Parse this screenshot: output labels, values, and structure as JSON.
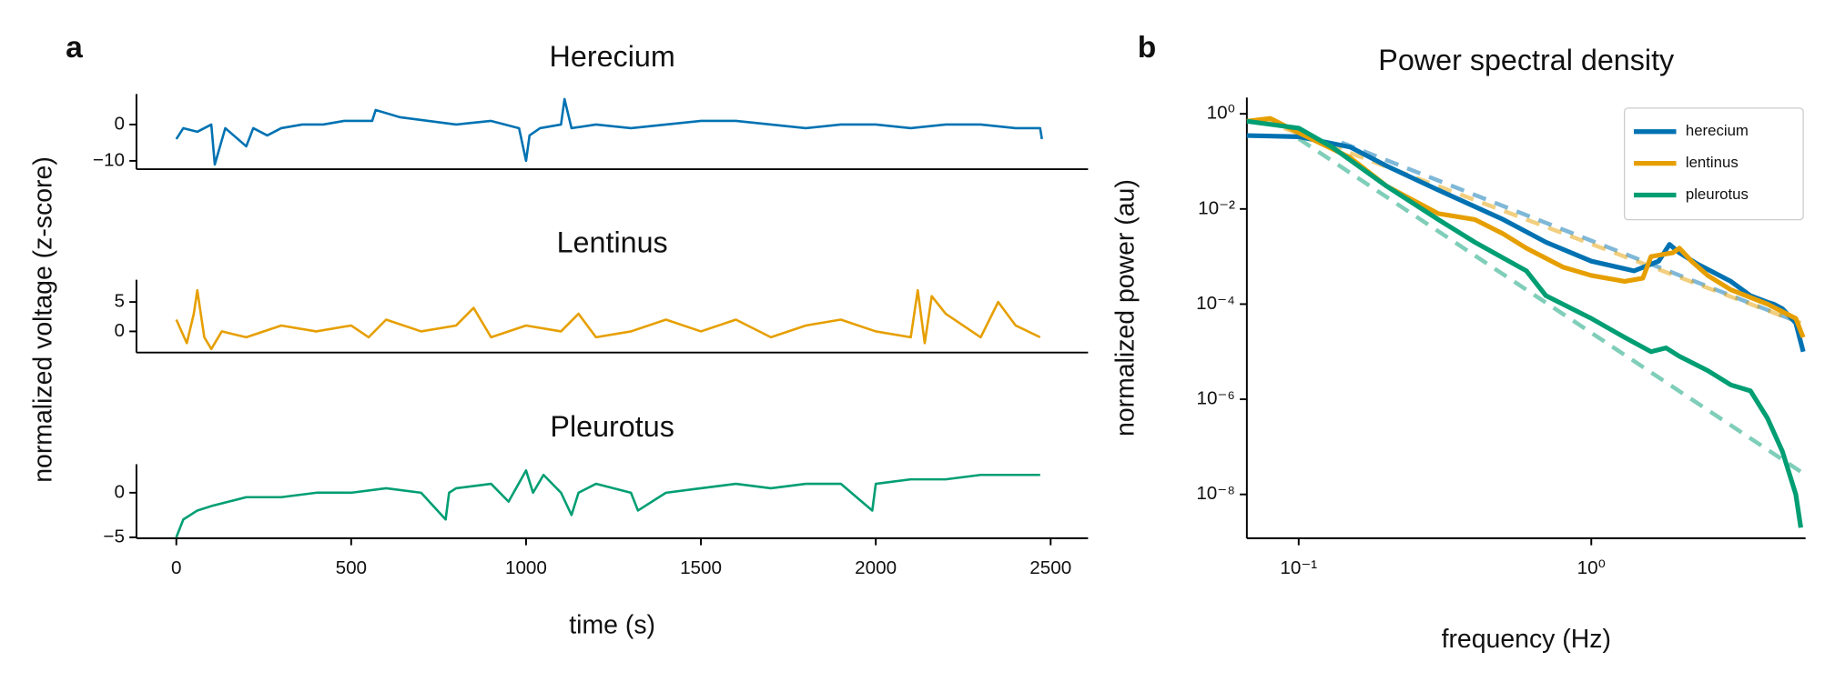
{
  "chart_data": [
    {
      "type": "line",
      "panel": "a",
      "title": "Herecium",
      "color": "#0072B2",
      "x": [
        0,
        20,
        60,
        100,
        110,
        140,
        200,
        220,
        260,
        300,
        360,
        420,
        480,
        560,
        570,
        640,
        720,
        800,
        900,
        980,
        1000,
        1010,
        1040,
        1100,
        1110,
        1130,
        1200,
        1300,
        1400,
        1500,
        1600,
        1700,
        1800,
        1900,
        2000,
        2100,
        2200,
        2300,
        2400,
        2470,
        2475
      ],
      "values": [
        -4,
        -1,
        -2,
        0,
        -11,
        -1,
        -6,
        -1,
        -3,
        -1,
        0,
        0,
        1,
        1,
        4,
        2,
        1,
        0,
        1,
        -1,
        -10,
        -3,
        -1,
        0,
        7,
        -1,
        0,
        -1,
        0,
        1,
        1,
        0,
        -1,
        0,
        0,
        -1,
        0,
        0,
        -1,
        -1,
        -4
      ],
      "xlim": [
        -114,
        2607
      ],
      "ylim": [
        -12.3,
        8.4
      ],
      "yticks": [
        0,
        {
          "value": -10,
          "label": "−10"
        }
      ]
    },
    {
      "type": "line",
      "title": "Lentinus",
      "color": "#E69F00",
      "ylabel": "normalized voltage (z-score)",
      "x": [
        0,
        30,
        50,
        60,
        80,
        100,
        130,
        200,
        300,
        400,
        500,
        550,
        600,
        700,
        800,
        850,
        900,
        1000,
        1100,
        1150,
        1200,
        1300,
        1400,
        1500,
        1600,
        1700,
        1800,
        1900,
        2000,
        2100,
        2120,
        2140,
        2160,
        2200,
        2300,
        2350,
        2400,
        2470
      ],
      "values": [
        2,
        -2,
        3,
        7,
        -1,
        -3,
        0,
        -1,
        1,
        0,
        1,
        -1,
        2,
        0,
        1,
        4,
        -1,
        1,
        0,
        3,
        -1,
        0,
        2,
        0,
        2,
        -1,
        1,
        2,
        0,
        -1,
        7,
        -2,
        6,
        3,
        -1,
        5,
        1,
        -1
      ],
      "xlim": [
        -114,
        2607
      ],
      "ylim": [
        -3.6,
        8.8
      ],
      "yticks": [
        5,
        0
      ]
    },
    {
      "type": "line",
      "title": "Pleurotus",
      "color": "#009E73",
      "xlabel": "time (s)",
      "x": [
        0,
        20,
        60,
        100,
        150,
        200,
        300,
        400,
        500,
        600,
        700,
        770,
        780,
        800,
        900,
        950,
        1000,
        1020,
        1050,
        1100,
        1130,
        1150,
        1200,
        1300,
        1320,
        1400,
        1500,
        1600,
        1700,
        1800,
        1900,
        1990,
        2000,
        2100,
        2200,
        2300,
        2400,
        2470
      ],
      "values": [
        -5,
        -3,
        -2,
        -1.5,
        -1,
        -0.5,
        -0.5,
        0,
        0,
        0.5,
        0,
        -3,
        0,
        0.5,
        1,
        -1,
        2.5,
        0,
        2,
        0,
        -2.5,
        0,
        1,
        0,
        -2,
        0,
        0.5,
        1,
        0.5,
        1,
        1,
        -2,
        1,
        1.5,
        1.5,
        2,
        2,
        2
      ],
      "xlim": [
        -114,
        2607
      ],
      "ylim": [
        -5.1,
        3.2
      ],
      "yticks": [
        0,
        {
          "value": -5,
          "label": "−5"
        }
      ],
      "xticks": [
        0,
        500,
        1000,
        1500,
        2000,
        2500
      ]
    },
    {
      "type": "line",
      "panel": "b",
      "title": "Power spectral density",
      "xlabel": "frequency (Hz)",
      "ylabel": "normalized power (au)",
      "xscale": "log",
      "yscale": "log",
      "legend": "upper right",
      "xlim": [
        0.0665,
        5.4
      ],
      "ylim": [
        1.2e-09,
        2.2
      ],
      "xticks": [
        {
          "value": 0.1,
          "label": "10⁻¹"
        },
        {
          "value": 1,
          "label": "10⁰"
        }
      ],
      "yticks": [
        {
          "value": 1,
          "label": "10⁰"
        },
        {
          "value": 0.01,
          "label": "10⁻²"
        },
        {
          "value": 0.0001,
          "label": "10⁻⁴"
        },
        {
          "value": 1e-06,
          "label": "10⁻⁶"
        },
        {
          "value": 1e-08,
          "label": "10⁻⁸"
        }
      ],
      "series": [
        {
          "name": "herecium",
          "color": "#0072B2",
          "x": [
            0.0665,
            0.1,
            0.15,
            0.2,
            0.3,
            0.5,
            0.7,
            1,
            1.4,
            1.7,
            1.85,
            2,
            2.3,
            3,
            3.5,
            4,
            4.2,
            4.5,
            5,
            5.3
          ],
          "values": [
            0.35,
            0.33,
            0.2,
            0.08,
            0.025,
            0.006,
            0.002,
            0.0008,
            0.0005,
            0.0008,
            0.0018,
            0.0012,
            0.0007,
            0.0003,
            0.00015,
            0.00011,
            0.0001,
            8e-05,
            4e-05,
            1e-05
          ]
        },
        {
          "name": "lentinus",
          "color": "#E69F00",
          "x": [
            0.0665,
            0.08,
            0.1,
            0.15,
            0.2,
            0.3,
            0.4,
            0.5,
            0.6,
            0.8,
            1,
            1.3,
            1.5,
            1.6,
            1.9,
            2,
            2.2,
            2.5,
            3,
            4,
            5,
            5.3
          ],
          "values": [
            0.7,
            0.8,
            0.4,
            0.12,
            0.03,
            0.008,
            0.006,
            0.003,
            0.0015,
            0.0006,
            0.0004,
            0.0003,
            0.00035,
            0.001,
            0.0012,
            0.0015,
            0.0008,
            0.0004,
            0.0002,
            0.0001,
            5e-05,
            2e-05
          ]
        },
        {
          "name": "pleurotus",
          "color": "#009E73",
          "x": [
            0.0665,
            0.1,
            0.13,
            0.2,
            0.3,
            0.4,
            0.6,
            0.7,
            1,
            1.3,
            1.6,
            1.8,
            2,
            2.5,
            3,
            3.5,
            4,
            4.5,
            5,
            5.2
          ],
          "values": [
            0.7,
            0.5,
            0.2,
            0.03,
            0.006,
            0.002,
            0.0005,
            0.00015,
            5e-05,
            2e-05,
            1e-05,
            1.2e-05,
            8e-06,
            4e-06,
            2e-06,
            1.5e-06,
            4e-07,
            8e-08,
            1e-08,
            2e-09
          ]
        }
      ],
      "fits": [
        {
          "color": "#0072B2",
          "x": [
            0.14,
            5.2
          ],
          "values": [
            0.25,
            4e-05
          ]
        },
        {
          "color": "#E69F00",
          "x": [
            0.075,
            5.2
          ],
          "values": [
            0.75,
            4e-05
          ]
        },
        {
          "color": "#009E73",
          "x": [
            0.1,
            5.2
          ],
          "values": [
            0.3,
            3e-08
          ]
        }
      ]
    }
  ]
}
